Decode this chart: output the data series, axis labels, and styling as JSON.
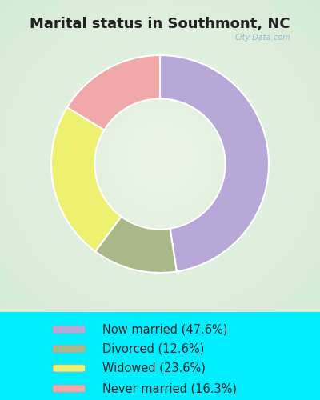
{
  "title": "Marital status in Southmont, NC",
  "title_fontsize": 13,
  "slices": [
    {
      "label": "Now married (47.6%)",
      "value": 47.6,
      "color": "#b8a8d8"
    },
    {
      "label": "Divorced (12.6%)",
      "value": 12.6,
      "color": "#a8b888"
    },
    {
      "label": "Widowed (23.6%)",
      "value": 23.6,
      "color": "#eef070"
    },
    {
      "label": "Never married (16.3%)",
      "value": 16.3,
      "color": "#f0a8a8"
    }
  ],
  "donut_width": 0.4,
  "legend_fontsize": 10.5,
  "cyan_bg": "#00EEFF",
  "chart_bg_color": "#d0ead8",
  "watermark": "City-Data.com",
  "watermark_color": "#88b8c8",
  "edge_color": "#ffffff",
  "title_color": "#222222"
}
